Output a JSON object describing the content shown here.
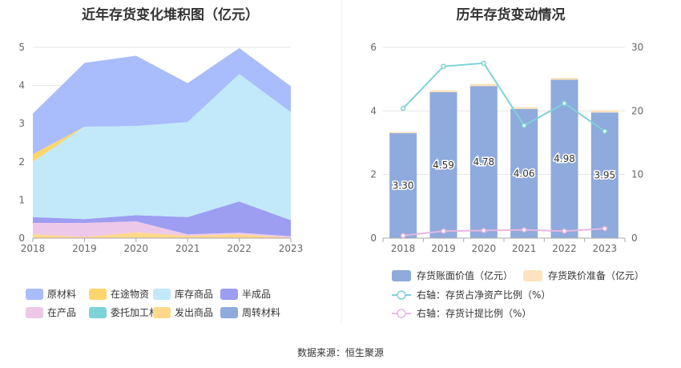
{
  "source": "数据来源：恒生聚源",
  "chart_data": [
    {
      "type": "area",
      "title": "近年存货变化堆积图（亿元）",
      "x": [
        "2018",
        "2019",
        "2020",
        "2021",
        "2022",
        "2023"
      ],
      "ylim": [
        0,
        5
      ],
      "yticks": [
        0,
        1,
        2,
        3,
        4,
        5
      ],
      "grid": true,
      "legend_position": "bottom",
      "series": [
        {
          "name": "周转材料",
          "color": "#8FAADC",
          "values": [
            0.0,
            0.0,
            0.0,
            0.0,
            0.0,
            0.0
          ]
        },
        {
          "name": "发出商品",
          "color": "#FFD88A",
          "values": [
            0.1,
            0.03,
            0.15,
            0.06,
            0.1,
            0.01
          ]
        },
        {
          "name": "委托加工材料",
          "color": "#7DD3D7",
          "values": [
            0.0,
            0.0,
            0.0,
            0.0,
            0.0,
            0.0
          ]
        },
        {
          "name": "在产品",
          "color": "#EEC8E8",
          "values": [
            0.3,
            0.37,
            0.29,
            0.04,
            0.04,
            0.04
          ]
        },
        {
          "name": "半成品",
          "color": "#9D9DF2",
          "values": [
            0.15,
            0.1,
            0.16,
            0.45,
            0.82,
            0.42
          ]
        },
        {
          "name": "库存商品",
          "color": "#C2E9F9",
          "values": [
            1.45,
            2.42,
            2.34,
            2.49,
            3.34,
            2.83
          ]
        },
        {
          "name": "在途物资",
          "color": "#FDD66A",
          "values": [
            0.2,
            0.0,
            0.0,
            0.0,
            0.0,
            0.0
          ]
        },
        {
          "name": "原材料",
          "color": "#A9BCFB",
          "values": [
            1.06,
            1.67,
            1.84,
            1.02,
            0.68,
            0.68
          ]
        }
      ],
      "legend_order": [
        "原材料",
        "在途物资",
        "库存商品",
        "半成品",
        "在产品",
        "委托加工材料",
        "发出商品",
        "周转材料"
      ]
    },
    {
      "type": "bar",
      "title": "历年存货变动情况",
      "categories": [
        "2018",
        "2019",
        "2020",
        "2021",
        "2022",
        "2023"
      ],
      "ylim_left": [
        0,
        6
      ],
      "yticks_left": [
        0,
        2,
        4,
        6
      ],
      "ylim_right": [
        0,
        30
      ],
      "yticks_right": [
        0,
        10,
        20,
        30
      ],
      "legend_position": "bottom",
      "series": [
        {
          "name": "存货账面价值（亿元）",
          "type": "bar",
          "color": "#8FAADC",
          "labels": [
            "3.30",
            "4.59",
            "4.78",
            "4.06",
            "4.98",
            "3.95"
          ],
          "values": [
            3.3,
            4.59,
            4.78,
            4.06,
            4.98,
            3.95
          ]
        },
        {
          "name": "存货跌价准备（亿元）",
          "type": "bar",
          "color": "#FDE3BE",
          "values": [
            0.04,
            0.06,
            0.07,
            0.06,
            0.06,
            0.07
          ]
        },
        {
          "name": "右轴：存货占净资产比例（%）",
          "type": "line",
          "axis": "right",
          "color": "#7DD3D7",
          "values": [
            20.4,
            27.0,
            27.5,
            17.7,
            21.2,
            16.8
          ]
        },
        {
          "name": "右轴：存货计提比例（%）",
          "type": "line",
          "axis": "right",
          "color": "#E7B6E2",
          "values": [
            0.4,
            1.1,
            1.2,
            1.3,
            1.1,
            1.5
          ]
        }
      ]
    }
  ]
}
